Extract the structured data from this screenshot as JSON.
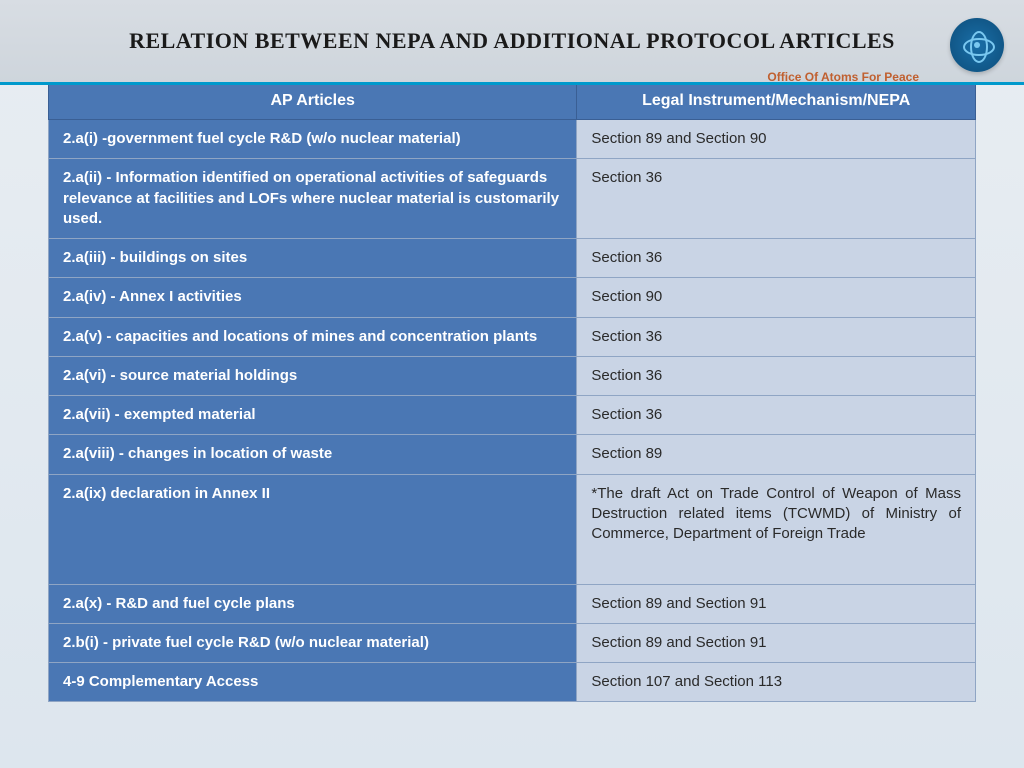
{
  "title": "RELATION BETWEEN NEPA AND ADDITIONAL PROTOCOL ARTICLES",
  "subtitle": "Office Of Atoms For Peace",
  "headers": {
    "left": "AP Articles",
    "right": "Legal Instrument/Mechanism/NEPA"
  },
  "rows": [
    {
      "l": "2.a(i) -government fuel cycle R&D (w/o nuclear material)",
      "r": "Section 89 and Section 90",
      "h": "norm"
    },
    {
      "l": "2.a(ii) - Information identified on operational activities of safeguards relevance at facilities and LOFs where nuclear material is customarily used.",
      "r": "Section 36",
      "h": "tall"
    },
    {
      "l": "2.a(iii) - buildings on sites",
      "r": "Section 36",
      "h": "norm"
    },
    {
      "l": "2.a(iv) - Annex I activities",
      "r": "Section 90",
      "h": "norm"
    },
    {
      "l": "2.a(v) - capacities and locations of mines and concentration plants",
      "r": "Section 36",
      "h": "norm"
    },
    {
      "l": "2.a(vi) - source material holdings",
      "r": "Section 36",
      "h": "norm"
    },
    {
      "l": "2.a(vii) - exempted material",
      "r": "Section 36",
      "h": "norm"
    },
    {
      "l": "2.a(viii) - changes in location of waste",
      "r": "Section 89",
      "h": "norm"
    },
    {
      "l": "2.a(ix) declaration in Annex II",
      "r": "*The draft Act on Trade Control of Weapon of Mass Destruction related items (TCWMD) of Ministry of Commerce, Department of Foreign Trade",
      "h": "big",
      "justify": true
    },
    {
      "l": "2.a(x) - R&D and fuel cycle plans",
      "r": "Section 89 and Section 91",
      "h": "norm"
    },
    {
      "l": "2.b(i) - private fuel cycle R&D (w/o nuclear material)",
      "r": "Section 89 and Section 91",
      "h": "norm"
    },
    {
      "l": "4-9 Complementary Access",
      "r": "Section 107 and Section 113",
      "h": "norm"
    }
  ],
  "colors": {
    "header_bg": "#4a77b4",
    "left_bg": "#4a77b4",
    "right_bg": "#c9d4e5",
    "border": "#8fa5c4",
    "page_bg_top": "#e8edf2",
    "page_bg_bottom": "#dde6ee",
    "accent_line": "#0099cc"
  }
}
